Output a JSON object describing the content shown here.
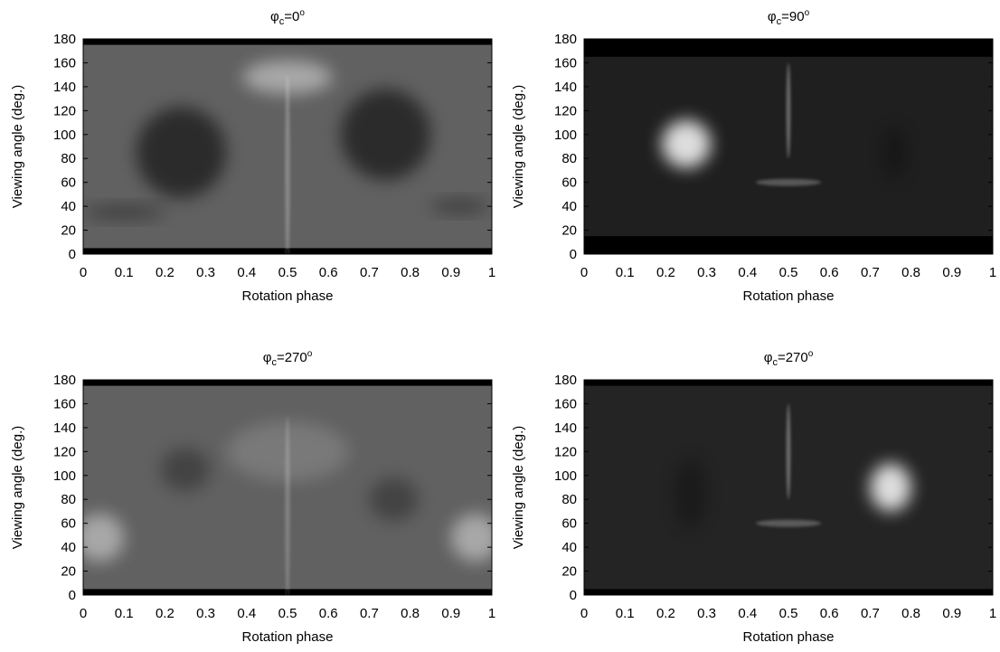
{
  "chart_data": [
    {
      "type": "heatmap",
      "title_symbol": "φ",
      "title_subscript": "c",
      "title_value": "=0",
      "title_superscript": "o",
      "xlabel": "Rotation phase",
      "ylabel": "Viewing angle (deg.)",
      "xlim": [
        0,
        1
      ],
      "ylim": [
        0,
        180
      ],
      "x_ticks": [
        "0",
        "0.1",
        "0.2",
        "0.3",
        "0.4",
        "0.5",
        "0.6",
        "0.7",
        "0.8",
        "0.9",
        "1"
      ],
      "y_ticks": [
        "0",
        "20",
        "40",
        "60",
        "80",
        "100",
        "120",
        "140",
        "160",
        "180"
      ],
      "colormap": "grayscale",
      "y_data_range": [
        5,
        175
      ],
      "features": [
        {
          "kind": "dark-blob",
          "phase": 0.24,
          "angle": 85,
          "size_phase": 0.11,
          "size_angle": 38,
          "weight": 0.55
        },
        {
          "kind": "dark-blob",
          "phase": 0.74,
          "angle": 100,
          "size_phase": 0.11,
          "size_angle": 38,
          "weight": 0.55
        },
        {
          "kind": "bright-blob",
          "phase": 0.5,
          "angle": 148,
          "size_phase": 0.11,
          "size_angle": 14,
          "weight": 0.45
        },
        {
          "kind": "dark-band",
          "phase": 0.1,
          "angle": 35,
          "size_phase": 0.1,
          "size_angle": 6,
          "weight": 0.35
        },
        {
          "kind": "dark-band",
          "phase": 0.92,
          "angle": 40,
          "size_phase": 0.07,
          "size_angle": 6,
          "weight": 0.35
        },
        {
          "kind": "bright-line",
          "phase": 0.5,
          "angle": 70,
          "size_phase": 0.006,
          "size_angle": 80,
          "weight": 0.25
        }
      ],
      "background_level": 0.38
    },
    {
      "type": "heatmap",
      "title_symbol": "φ",
      "title_subscript": "c",
      "title_value": "=90",
      "title_superscript": "o",
      "xlabel": "Rotation phase",
      "ylabel": "Viewing angle (deg.)",
      "xlim": [
        0,
        1
      ],
      "ylim": [
        0,
        180
      ],
      "x_ticks": [
        "0",
        "0.1",
        "0.2",
        "0.3",
        "0.4",
        "0.5",
        "0.6",
        "0.7",
        "0.8",
        "0.9",
        "1"
      ],
      "y_ticks": [
        "0",
        "20",
        "40",
        "60",
        "80",
        "100",
        "120",
        "140",
        "160",
        "180"
      ],
      "colormap": "grayscale",
      "y_data_range": [
        15,
        165
      ],
      "features": [
        {
          "kind": "bright-blob",
          "phase": 0.25,
          "angle": 92,
          "size_phase": 0.06,
          "size_angle": 20,
          "weight": 0.85
        },
        {
          "kind": "dark-band",
          "phase": 0.76,
          "angle": 85,
          "size_phase": 0.03,
          "size_angle": 22,
          "weight": 0.25
        },
        {
          "kind": "bright-line",
          "phase": 0.5,
          "angle": 120,
          "size_phase": 0.005,
          "size_angle": 40,
          "weight": 0.35
        },
        {
          "kind": "bright-line",
          "phase": 0.5,
          "angle": 60,
          "size_phase": 0.08,
          "size_angle": 3,
          "weight": 0.25
        }
      ],
      "background_level": 0.12
    },
    {
      "type": "heatmap",
      "title_symbol": "φ",
      "title_subscript": "c",
      "title_value": "=270",
      "title_superscript": "o",
      "xlabel": "Rotation phase",
      "ylabel": "Viewing angle (deg.)",
      "xlim": [
        0,
        1
      ],
      "ylim": [
        0,
        180
      ],
      "x_ticks": [
        "0",
        "0.1",
        "0.2",
        "0.3",
        "0.4",
        "0.5",
        "0.6",
        "0.7",
        "0.8",
        "0.9",
        "1"
      ],
      "y_ticks": [
        "0",
        "20",
        "40",
        "60",
        "80",
        "100",
        "120",
        "140",
        "160",
        "180"
      ],
      "colormap": "grayscale",
      "y_data_range": [
        5,
        175
      ],
      "features": [
        {
          "kind": "bright-blob",
          "phase": 0.04,
          "angle": 48,
          "size_phase": 0.06,
          "size_angle": 20,
          "weight": 0.45
        },
        {
          "kind": "bright-blob",
          "phase": 0.96,
          "angle": 48,
          "size_phase": 0.06,
          "size_angle": 20,
          "weight": 0.45
        },
        {
          "kind": "dark-blob",
          "phase": 0.25,
          "angle": 105,
          "size_phase": 0.06,
          "size_angle": 18,
          "weight": 0.3
        },
        {
          "kind": "dark-blob",
          "phase": 0.76,
          "angle": 80,
          "size_phase": 0.06,
          "size_angle": 18,
          "weight": 0.3
        },
        {
          "kind": "bright-blob",
          "phase": 0.5,
          "angle": 120,
          "size_phase": 0.15,
          "size_angle": 25,
          "weight": 0.15
        },
        {
          "kind": "bright-line",
          "phase": 0.5,
          "angle": 70,
          "size_phase": 0.006,
          "size_angle": 80,
          "weight": 0.2
        }
      ],
      "background_level": 0.38
    },
    {
      "type": "heatmap",
      "title_symbol": "φ",
      "title_subscript": "c",
      "title_value": "=270",
      "title_superscript": "o",
      "xlabel": "Rotation phase",
      "ylabel": "Viewing angle (deg.)",
      "xlim": [
        0,
        1
      ],
      "ylim": [
        0,
        180
      ],
      "x_ticks": [
        "0",
        "0.1",
        "0.2",
        "0.3",
        "0.4",
        "0.5",
        "0.6",
        "0.7",
        "0.8",
        "0.9",
        "1"
      ],
      "y_ticks": [
        "0",
        "20",
        "40",
        "60",
        "80",
        "100",
        "120",
        "140",
        "160",
        "180"
      ],
      "colormap": "grayscale",
      "y_data_range": [
        5,
        175
      ],
      "features": [
        {
          "kind": "bright-blob",
          "phase": 0.75,
          "angle": 90,
          "size_phase": 0.05,
          "size_angle": 20,
          "weight": 0.85
        },
        {
          "kind": "dark-band",
          "phase": 0.26,
          "angle": 85,
          "size_phase": 0.04,
          "size_angle": 30,
          "weight": 0.25
        },
        {
          "kind": "bright-line",
          "phase": 0.5,
          "angle": 120,
          "size_phase": 0.005,
          "size_angle": 40,
          "weight": 0.35
        },
        {
          "kind": "bright-line",
          "phase": 0.5,
          "angle": 60,
          "size_phase": 0.08,
          "size_angle": 3,
          "weight": 0.25
        }
      ],
      "background_level": 0.14
    }
  ]
}
